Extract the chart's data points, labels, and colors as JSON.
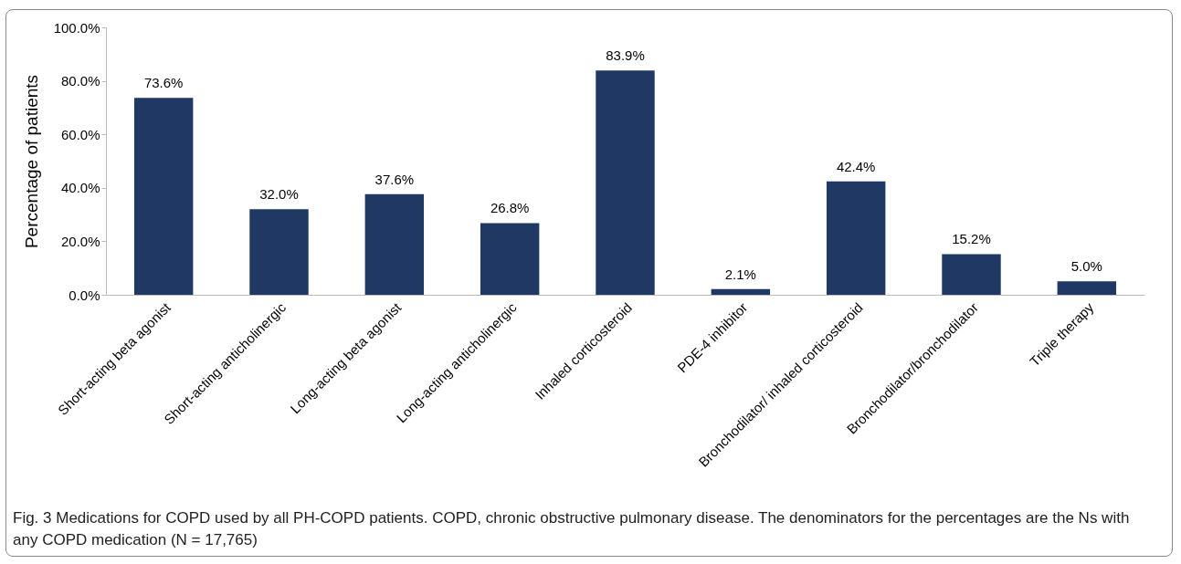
{
  "chart_data": {
    "type": "bar",
    "ylabel": "Percentage of patients",
    "categories": [
      "Short-acting beta agonist",
      "Short-acting anticholinergic",
      "Long-acting beta agonist",
      "Long-acting anticholinergic",
      "Inhaled corticosteroid",
      "PDE-4 inhibitor",
      "Bronchodilator/ inhaled corticosteroid",
      "Bronchodilator/bronchodilator",
      "Triple therapy"
    ],
    "values": [
      73.6,
      32.0,
      37.6,
      26.8,
      83.9,
      2.1,
      42.4,
      15.2,
      5.0
    ],
    "value_labels": [
      "73.6%",
      "32.0%",
      "37.6%",
      "26.8%",
      "83.9%",
      "2.1%",
      "42.4%",
      "15.2%",
      "5.0%"
    ],
    "color": "#1f3864",
    "ylim": [
      0,
      100
    ],
    "yticks": [
      {
        "value": 0,
        "label": "0.0%"
      },
      {
        "value": 20,
        "label": "20.0%"
      },
      {
        "value": 40,
        "label": "40.0%"
      },
      {
        "value": 60,
        "label": "60.0%"
      },
      {
        "value": 80,
        "label": "80.0%"
      },
      {
        "value": 100,
        "label": "100.0%"
      }
    ],
    "grid": false,
    "annotations": [
      "Fig. 3 Medications for COPD used by all PH-COPD patients. COPD, chronic obstructive pulmonary disease. The denominators for the percentages are the Ns with any COPD medication (N = 17,765)"
    ]
  }
}
